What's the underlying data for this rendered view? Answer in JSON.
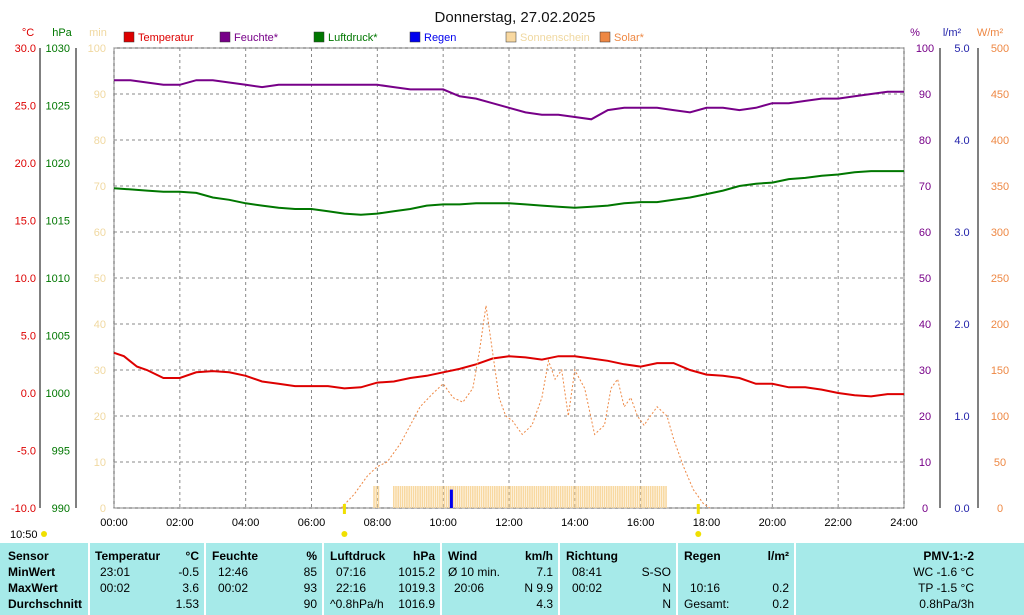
{
  "colors": {
    "temperature": "#dd0000",
    "humidity": "#770088",
    "pressure": "#007700",
    "rain": "#0000ee",
    "sunshine": "#f8d8a0",
    "solar": "#ee8844",
    "grid": "#888888",
    "panel": "#a6eae9",
    "sun_marker": "#f0e000"
  },
  "chart_data": {
    "type": "line",
    "title": "Donnerstag, 27.02.2025",
    "x_ticks": [
      "00:00",
      "02:00",
      "04:00",
      "06:00",
      "08:00",
      "10:00",
      "12:00",
      "14:00",
      "16:00",
      "18:00",
      "20:00",
      "22:00",
      "24:00"
    ],
    "xlim": [
      0,
      24
    ],
    "axes": {
      "temperature": {
        "unit": "°C",
        "min": -10,
        "max": 30,
        "ticks": [
          "30.0",
          "25.0",
          "20.0",
          "15.0",
          "10.0",
          "5.0",
          "0.0",
          "-5.0",
          "-10.0"
        ]
      },
      "pressure": {
        "unit": "hPa",
        "min": 990,
        "max": 1030,
        "ticks": [
          "1030",
          "1025",
          "1020",
          "1015",
          "1010",
          "1005",
          "1000",
          "995",
          "990"
        ]
      },
      "sunshine": {
        "unit": "min",
        "min": 0,
        "max": 100,
        "ticks": [
          "100",
          "90",
          "80",
          "70",
          "60",
          "50",
          "40",
          "30",
          "20",
          "10",
          "0"
        ]
      },
      "humidity": {
        "unit": "%",
        "min": 0,
        "max": 100,
        "ticks": [
          "100",
          "90",
          "80",
          "70",
          "60",
          "50",
          "40",
          "30",
          "20",
          "10",
          "0"
        ]
      },
      "rain": {
        "unit": "l/m²",
        "min": 0,
        "max": 5,
        "ticks": [
          "5.0",
          "4.0",
          "3.0",
          "2.0",
          "1.0",
          "0.0"
        ]
      },
      "solar": {
        "unit": "W/m²",
        "min": 0,
        "max": 500,
        "ticks": [
          "500",
          "450",
          "400",
          "350",
          "300",
          "250",
          "200",
          "150",
          "100",
          "50",
          "0"
        ]
      }
    },
    "legend": [
      "Temperatur",
      "Feuchte*",
      "Luftdruck*",
      "Regen",
      "Sonnenschein",
      "Solar*"
    ],
    "series": [
      {
        "name": "Temperatur",
        "axis": "temperature",
        "x": [
          0,
          0.3,
          0.7,
          1.0,
          1.5,
          2.0,
          2.5,
          3.0,
          3.5,
          4.0,
          4.5,
          5.0,
          5.5,
          6.0,
          6.5,
          7.0,
          7.5,
          8.0,
          8.5,
          9.0,
          9.5,
          10.0,
          10.5,
          11.0,
          11.5,
          12.0,
          12.5,
          13.0,
          13.5,
          14.0,
          14.5,
          15.0,
          15.5,
          16.0,
          16.5,
          17.0,
          17.5,
          18.0,
          18.5,
          19.0,
          19.5,
          20.0,
          20.5,
          21.0,
          21.5,
          22.0,
          22.5,
          23.0,
          23.5,
          24.0
        ],
        "y": [
          3.5,
          3.2,
          2.3,
          2.0,
          1.3,
          1.3,
          1.8,
          1.9,
          1.8,
          1.5,
          1.0,
          0.8,
          0.6,
          0.6,
          0.6,
          0.4,
          0.5,
          0.9,
          1.0,
          1.3,
          1.5,
          1.8,
          2.1,
          2.5,
          3.0,
          3.2,
          3.1,
          2.9,
          3.2,
          3.2,
          3.0,
          2.8,
          2.5,
          2.3,
          2.6,
          2.6,
          2.0,
          1.6,
          1.5,
          1.3,
          0.8,
          0.8,
          0.5,
          0.5,
          0.3,
          0.0,
          -0.2,
          -0.3,
          -0.1,
          -0.1
        ]
      },
      {
        "name": "Feuchte*",
        "axis": "humidity",
        "x": [
          0,
          0.5,
          1.0,
          1.5,
          2.0,
          2.5,
          3.0,
          3.5,
          4.0,
          4.5,
          5.0,
          5.5,
          6.0,
          6.5,
          7.0,
          7.5,
          8.0,
          8.5,
          9.0,
          9.5,
          10.0,
          10.5,
          11.0,
          11.5,
          12.0,
          12.5,
          13.0,
          13.5,
          14.0,
          14.5,
          15.0,
          15.5,
          16.0,
          16.5,
          17.0,
          17.5,
          18.0,
          18.5,
          19.0,
          19.5,
          20.0,
          20.5,
          21.0,
          21.5,
          22.0,
          22.5,
          23.0,
          23.5,
          24.0
        ],
        "y": [
          93,
          93,
          92.5,
          92,
          92,
          93,
          93,
          92.5,
          92,
          91.5,
          92,
          92,
          92,
          92,
          92,
          92,
          92,
          91.5,
          91,
          91,
          91,
          89.5,
          89,
          88,
          87,
          86,
          85.5,
          85.5,
          85,
          84.5,
          86.5,
          87,
          87,
          87,
          86.5,
          86,
          87,
          87,
          86.5,
          87,
          88,
          88,
          88.5,
          89,
          89,
          89.5,
          90,
          90.5,
          90.5
        ]
      },
      {
        "name": "Luftdruck*",
        "axis": "pressure",
        "x": [
          0,
          0.5,
          1.0,
          1.5,
          2.0,
          2.5,
          3.0,
          3.5,
          4.0,
          4.5,
          5.0,
          5.5,
          6.0,
          6.5,
          7.0,
          7.5,
          8.0,
          8.5,
          9.0,
          9.5,
          10.0,
          10.5,
          11.0,
          11.5,
          12.0,
          12.5,
          13.0,
          13.5,
          14.0,
          14.5,
          15.0,
          15.5,
          16.0,
          16.5,
          17.0,
          17.5,
          18.0,
          18.5,
          19.0,
          19.5,
          20.0,
          20.5,
          21.0,
          21.5,
          22.0,
          22.5,
          23.0,
          23.5,
          24.0
        ],
        "y": [
          1017.8,
          1017.7,
          1017.6,
          1017.5,
          1017.5,
          1017.4,
          1017.0,
          1016.8,
          1016.5,
          1016.3,
          1016.1,
          1016.0,
          1016.0,
          1015.8,
          1015.6,
          1015.5,
          1015.6,
          1015.8,
          1016.0,
          1016.3,
          1016.4,
          1016.4,
          1016.5,
          1016.5,
          1016.5,
          1016.4,
          1016.3,
          1016.2,
          1016.1,
          1016.2,
          1016.3,
          1016.5,
          1016.6,
          1016.6,
          1016.8,
          1017.0,
          1017.3,
          1017.6,
          1018.0,
          1018.2,
          1018.3,
          1018.6,
          1018.7,
          1018.9,
          1019.0,
          1019.2,
          1019.3,
          1019.3,
          1019.3
        ]
      },
      {
        "name": "Solar*",
        "axis": "solar",
        "x": [
          6.9,
          7.3,
          7.7,
          8.0,
          8.3,
          8.7,
          9.0,
          9.3,
          9.7,
          10.0,
          10.3,
          10.6,
          10.9,
          11.1,
          11.3,
          11.5,
          11.7,
          11.9,
          12.1,
          12.4,
          12.7,
          13.0,
          13.2,
          13.4,
          13.6,
          13.8,
          14.0,
          14.3,
          14.6,
          14.9,
          15.1,
          15.3,
          15.5,
          15.7,
          15.9,
          16.1,
          16.3,
          16.5,
          16.8,
          17.0,
          17.3,
          17.6,
          17.9,
          18.1
        ],
        "y": [
          0,
          15,
          35,
          45,
          50,
          70,
          90,
          110,
          125,
          135,
          120,
          115,
          130,
          170,
          220,
          170,
          120,
          100,
          95,
          80,
          90,
          120,
          160,
          140,
          150,
          100,
          150,
          130,
          80,
          90,
          130,
          140,
          110,
          120,
          100,
          90,
          100,
          110,
          100,
          75,
          45,
          20,
          5,
          0
        ]
      }
    ],
    "rain": [
      {
        "x": 10.25,
        "y": 0.2
      }
    ],
    "sunshine": [
      {
        "from": 7.9,
        "to": 8.1
      },
      {
        "from": 8.5,
        "to": 16.8
      }
    ],
    "sunrise_time": "07:00",
    "sunset_time": "17:45",
    "sunshine_duration": "10:50"
  },
  "stats": {
    "sensor": {
      "header": "Sensor",
      "rows": [
        "MinWert",
        "MaxWert",
        "Durchschnitt"
      ]
    },
    "temperature": {
      "header": "Temperatur",
      "unit": "°C",
      "min_time": "23:01",
      "min_val": "-0.5",
      "max_time": "00:02",
      "max_val": "3.6",
      "avg": "1.53"
    },
    "humidity": {
      "header": "Feuchte",
      "unit": "%",
      "min_time": "12:46",
      "min_val": "85",
      "max_time": "00:02",
      "max_val": "93",
      "avg": "90"
    },
    "pressure": {
      "header": "Luftdruck",
      "unit": "hPa",
      "min_time": "07:16",
      "min_val": "1015.2",
      "max_time": "22:16",
      "max_val": "1019.3",
      "trend": "^0.8hPa/h",
      "avg": "1016.9"
    },
    "wind": {
      "header": "Wind",
      "unit": "km/h",
      "row1_label": "Ø 10 min.",
      "row1_val": "7.1",
      "row2_time": "20:06",
      "row2_val": "N 9.9",
      "avg": "4.3"
    },
    "direction": {
      "header": "Richtung",
      "time1": "08:41",
      "val1": "S-SO",
      "time2": "00:02",
      "val2": "N",
      "val3": "N"
    },
    "rain": {
      "header": "Regen",
      "unit": "l/m²",
      "time": "10:16",
      "val": "0.2",
      "total_label": "Gesamt:",
      "total": "0.2"
    },
    "pmv": {
      "header": "PMV-1:-2",
      "wc": "WC -1.6 °C",
      "tp": "TP -1.5 °C",
      "trend": "0.8hPa/3h"
    }
  }
}
